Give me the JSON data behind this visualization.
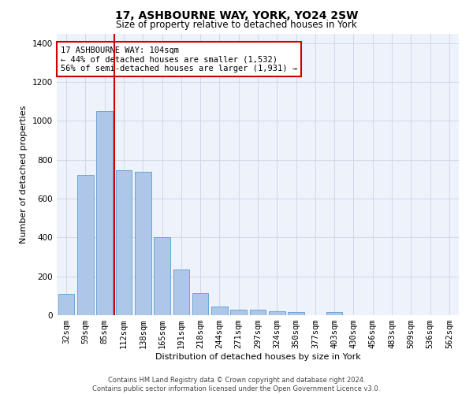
{
  "title": "17, ASHBOURNE WAY, YORK, YO24 2SW",
  "subtitle": "Size of property relative to detached houses in York",
  "xlabel": "Distribution of detached houses by size in York",
  "ylabel": "Number of detached properties",
  "footer_line1": "Contains HM Land Registry data © Crown copyright and database right 2024.",
  "footer_line2": "Contains public sector information licensed under the Open Government Licence v3.0.",
  "annotation_title": "17 ASHBOURNE WAY: 104sqm",
  "annotation_line2": "← 44% of detached houses are smaller (1,532)",
  "annotation_line3": "56% of semi-detached houses are larger (1,931) →",
  "bar_labels": [
    "32sqm",
    "59sqm",
    "85sqm",
    "112sqm",
    "138sqm",
    "165sqm",
    "191sqm",
    "218sqm",
    "244sqm",
    "271sqm",
    "297sqm",
    "324sqm",
    "350sqm",
    "377sqm",
    "403sqm",
    "430sqm",
    "456sqm",
    "483sqm",
    "509sqm",
    "536sqm",
    "562sqm"
  ],
  "bar_values": [
    110,
    720,
    1050,
    745,
    740,
    400,
    235,
    115,
    45,
    28,
    28,
    20,
    15,
    0,
    15,
    0,
    0,
    0,
    0,
    0,
    0
  ],
  "bar_color": "#aec6e8",
  "bar_edge_color": "#5a9fd4",
  "grid_color": "#d0d8e8",
  "bg_color": "#eef3fb",
  "vline_color": "#cc0000",
  "vline_pos": 2.5,
  "annotation_box_color": "#cc0000",
  "ylim": [
    0,
    1450
  ],
  "yticks": [
    0,
    200,
    400,
    600,
    800,
    1000,
    1200,
    1400
  ],
  "title_fontsize": 10,
  "subtitle_fontsize": 8.5,
  "ylabel_fontsize": 8,
  "xlabel_fontsize": 8,
  "tick_fontsize": 7.5,
  "annot_fontsize": 7.5,
  "footer_fontsize": 6
}
